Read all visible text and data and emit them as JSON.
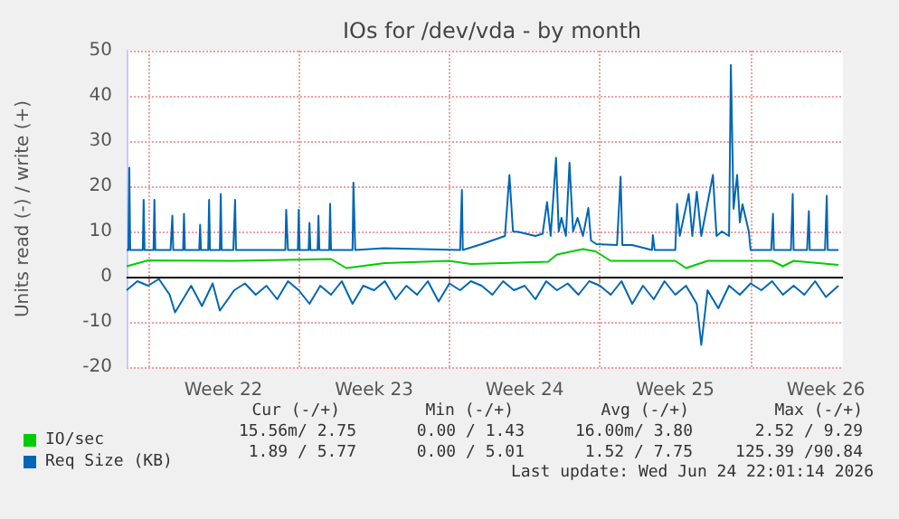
{
  "chart_data": {
    "type": "line",
    "title": "IOs for /dev/vda - by month",
    "ylabel": "Units read (-) / write (+)",
    "xlim": [
      "2026-05-24T00:00",
      "2026-06-26T07:00"
    ],
    "xticks": [
      {
        "value": "2026-05-25T00:00",
        "label": null
      },
      {
        "value": "2026-05-28T12:00",
        "label": "Week 22"
      },
      {
        "value": "2026-06-01T00:00",
        "label": null
      },
      {
        "value": "2026-06-04T12:00",
        "label": "Week 23"
      },
      {
        "value": "2026-06-08T00:00",
        "label": null
      },
      {
        "value": "2026-06-11T12:00",
        "label": "Week 24"
      },
      {
        "value": "2026-06-15T00:00",
        "label": null
      },
      {
        "value": "2026-06-18T12:00",
        "label": "Week 25"
      },
      {
        "value": "2026-06-22T00:00",
        "label": null
      },
      {
        "value": "2026-06-25T12:00",
        "label": "Week 26"
      }
    ],
    "ylim": [
      -20,
      50
    ],
    "yticks": [
      -20,
      -10,
      0,
      10,
      20,
      30,
      40,
      50
    ],
    "grid": true,
    "legend": "bottom left",
    "marker": "none",
    "line_style": "solid",
    "ref_lines": [
      {
        "axis": "y",
        "value": 0,
        "color": "#000000"
      }
    ],
    "series": [
      {
        "name": "IO/sec",
        "color": "#00cc00",
        "x": [
          "2026-05-24T00:00",
          "2026-05-25T00:00",
          "2026-05-29T00:00",
          "2026-06-02T12:00",
          "2026-06-03T05:00",
          "2026-06-05T00:00",
          "2026-06-08T00:00",
          "2026-06-09T00:00",
          "2026-06-12T14:00",
          "2026-06-13T00:00",
          "2026-06-14T05:00",
          "2026-06-14T19:00",
          "2026-06-15T12:00",
          "2026-06-18T12:00",
          "2026-06-19T00:00",
          "2026-06-20T00:00",
          "2026-06-23T00:00",
          "2026-06-23T12:00",
          "2026-06-24T00:00",
          "2026-06-26T02:00"
        ],
        "values": [
          2.3,
          3.6,
          3.5,
          3.9,
          1.9,
          3.0,
          3.5,
          2.8,
          3.3,
          4.9,
          6.1,
          5.6,
          3.5,
          3.5,
          1.9,
          3.5,
          3.5,
          2.3,
          3.5,
          2.6
        ]
      },
      {
        "name": "Req Size (KB)",
        "color": "#0066b3",
        "x": [
          "2026-05-24T00:00",
          "2026-05-24T02:00",
          "2026-05-24T03:00",
          "2026-05-24T04:00",
          "2026-05-24T18:00",
          "2026-05-24T19:00",
          "2026-05-24T20:00",
          "2026-05-25T06:00",
          "2026-05-25T07:00",
          "2026-05-25T08:00",
          "2026-05-26T01:00",
          "2026-05-26T03:00",
          "2026-05-26T04:00",
          "2026-05-26T15:00",
          "2026-05-26T16:00",
          "2026-05-26T17:00",
          "2026-05-27T09:00",
          "2026-05-27T10:00",
          "2026-05-27T11:00",
          "2026-05-27T19:00",
          "2026-05-27T20:00",
          "2026-05-27T21:00",
          "2026-05-28T08:00",
          "2026-05-28T09:00",
          "2026-05-28T10:00",
          "2026-05-28T23:00",
          "2026-05-29T01:00",
          "2026-05-29T02:00",
          "2026-05-31T09:00",
          "2026-05-31T10:00",
          "2026-05-31T12:00",
          "2026-05-31T23:00",
          "2026-06-01T00:00",
          "2026-06-01T01:00",
          "2026-06-01T11:00",
          "2026-06-01T12:00",
          "2026-06-01T13:00",
          "2026-06-01T21:00",
          "2026-06-01T22:00",
          "2026-06-01T23:00",
          "2026-06-02T10:00",
          "2026-06-02T11:00",
          "2026-06-02T12:00",
          "2026-06-03T12:00",
          "2026-06-03T13:00",
          "2026-06-03T15:00",
          "2026-06-04T23:00",
          "2026-06-08T12:00",
          "2026-06-08T14:00",
          "2026-06-08T15:00",
          "2026-06-09T12:00",
          "2026-06-10T14:00",
          "2026-06-10T19:00",
          "2026-06-10T23:00",
          "2026-06-11T05:00",
          "2026-06-12T00:00",
          "2026-06-12T08:00",
          "2026-06-12T13:00",
          "2026-06-12T17:00",
          "2026-06-12T23:00",
          "2026-06-13T02:00",
          "2026-06-13T05:00",
          "2026-06-13T10:00",
          "2026-06-13T14:00",
          "2026-06-13T18:00",
          "2026-06-13T23:00",
          "2026-06-14T05:00",
          "2026-06-14T11:00",
          "2026-06-14T14:00",
          "2026-06-14T20:00",
          "2026-06-15T19:00",
          "2026-06-15T23:00",
          "2026-06-16T01:00",
          "2026-06-16T12:00",
          "2026-06-17T10:00",
          "2026-06-17T11:00",
          "2026-06-17T13:00",
          "2026-06-18T12:00",
          "2026-06-18T14:00",
          "2026-06-18T17:00",
          "2026-06-19T03:00",
          "2026-06-19T07:00",
          "2026-06-19T12:00",
          "2026-06-19T17:00",
          "2026-06-20T06:00",
          "2026-06-20T10:00",
          "2026-06-20T16:00",
          "2026-06-21T00:00",
          "2026-06-21T02:00",
          "2026-06-21T05:00",
          "2026-06-21T09:00",
          "2026-06-21T12:00",
          "2026-06-21T15:00",
          "2026-06-21T22:00",
          "2026-06-22T00:00",
          "2026-06-22T23:00",
          "2026-06-23T01:00",
          "2026-06-23T02:00",
          "2026-06-23T21:00",
          "2026-06-23T23:00",
          "2026-06-24T00:00",
          "2026-06-24T15:00",
          "2026-06-24T17:00",
          "2026-06-24T18:00",
          "2026-06-25T11:00",
          "2026-06-25T13:00",
          "2026-06-25T14:00",
          "2026-06-26T02:00"
        ],
        "values": [
          5.9,
          5.9,
          24.1,
          5.9,
          5.9,
          17,
          5.9,
          5.9,
          17,
          5.9,
          5.9,
          13.5,
          5.9,
          5.9,
          13.9,
          5.9,
          5.9,
          11.5,
          5.9,
          5.9,
          17,
          5.9,
          5.9,
          18.3,
          5.9,
          5.9,
          17,
          5.9,
          5.9,
          14.8,
          5.9,
          5.9,
          14.8,
          5.9,
          5.9,
          11.9,
          5.9,
          5.9,
          13.5,
          5.9,
          5.9,
          16.1,
          5.9,
          5.9,
          20.8,
          5.9,
          6.3,
          5.9,
          19.2,
          5.9,
          7.2,
          9,
          22.5,
          10,
          9.9,
          9,
          9.5,
          16.5,
          9,
          26.3,
          10,
          13,
          9,
          25.2,
          10,
          13,
          9,
          15.2,
          8,
          7.2,
          7,
          22.1,
          7,
          7,
          5.9,
          9.2,
          5.9,
          5.9,
          16.1,
          9,
          18.3,
          9,
          18.8,
          9,
          22.5,
          9,
          10,
          9,
          46.8,
          15,
          22.5,
          12,
          16,
          10,
          5.9,
          5.9,
          13.9,
          5.9,
          5.9,
          18.3,
          5.9,
          5.9,
          14.5,
          5.9,
          5.9,
          17.9,
          5.9,
          5.9
        ]
      },
      {
        "color": "#0066b3",
        "x": [
          "2026-05-24T00:00",
          "2026-05-24T12:00",
          "2026-05-25T00:00",
          "2026-05-25T12:00",
          "2026-05-26T00:00",
          "2026-05-26T06:00",
          "2026-05-27T00:00",
          "2026-05-27T12:00",
          "2026-05-28T00:00",
          "2026-05-28T08:00",
          "2026-05-29T00:00",
          "2026-05-29T12:00",
          "2026-05-30T00:00",
          "2026-05-30T12:00",
          "2026-05-31T00:00",
          "2026-05-31T12:00",
          "2026-06-01T00:00",
          "2026-06-01T12:00",
          "2026-06-02T00:00",
          "2026-06-02T12:00",
          "2026-06-03T00:00",
          "2026-06-03T12:00",
          "2026-06-04T00:00",
          "2026-06-04T12:00",
          "2026-06-05T00:00",
          "2026-06-05T12:00",
          "2026-06-06T00:00",
          "2026-06-06T12:00",
          "2026-06-07T00:00",
          "2026-06-07T12:00",
          "2026-06-08T00:00",
          "2026-06-08T12:00",
          "2026-06-09T00:00",
          "2026-06-09T12:00",
          "2026-06-10T00:00",
          "2026-06-10T12:00",
          "2026-06-11T00:00",
          "2026-06-11T12:00",
          "2026-06-12T00:00",
          "2026-06-12T12:00",
          "2026-06-13T00:00",
          "2026-06-13T12:00",
          "2026-06-14T00:00",
          "2026-06-14T12:00",
          "2026-06-15T00:00",
          "2026-06-15T12:00",
          "2026-06-16T00:00",
          "2026-06-16T12:00",
          "2026-06-17T00:00",
          "2026-06-17T12:00",
          "2026-06-18T00:00",
          "2026-06-18T12:00",
          "2026-06-19T00:00",
          "2026-06-19T12:00",
          "2026-06-19T17:00",
          "2026-06-20T00:00",
          "2026-06-20T12:00",
          "2026-06-21T00:00",
          "2026-06-21T12:00",
          "2026-06-22T00:00",
          "2026-06-22T12:00",
          "2026-06-23T00:00",
          "2026-06-23T12:00",
          "2026-06-24T00:00",
          "2026-06-24T12:00",
          "2026-06-25T00:00",
          "2026-06-25T12:00",
          "2026-06-26T02:00"
        ],
        "values": [
          -3,
          -1,
          -2,
          -0.5,
          -4,
          -7.9,
          -2,
          -6.5,
          -1.5,
          -7.5,
          -3,
          -1.5,
          -4,
          -2,
          -5,
          -1,
          -3,
          -6,
          -2,
          -4,
          -1,
          -6,
          -2,
          -3,
          -1,
          -5,
          -2,
          -4,
          -1,
          -5.5,
          -1.5,
          -3,
          -1,
          -2,
          -4,
          -1,
          -3,
          -2,
          -5,
          -1,
          -3,
          -1.5,
          -4,
          -1,
          -2,
          -4,
          -1,
          -6,
          -2,
          -5,
          -1,
          -4,
          -2,
          -6,
          -15.1,
          -3,
          -7,
          -2,
          -4,
          -1.5,
          -3,
          -1,
          -4,
          -2,
          -4,
          -1,
          -4.5,
          -2
        ]
      }
    ],
    "annotations": [
      "Cur (-/+)",
      "Min (-/+)",
      "Avg (-/+)",
      "Max (-/+)",
      "15.56m/ 2.75",
      "0.00 / 1.43",
      "16.00m/ 3.80",
      "2.52 / 9.29",
      "1.89 / 5.77",
      "0.00 / 5.01",
      "1.52 / 7.75",
      "125.39 /90.84",
      "Last update: Wed Jun 24 22:01:14 2026"
    ]
  }
}
